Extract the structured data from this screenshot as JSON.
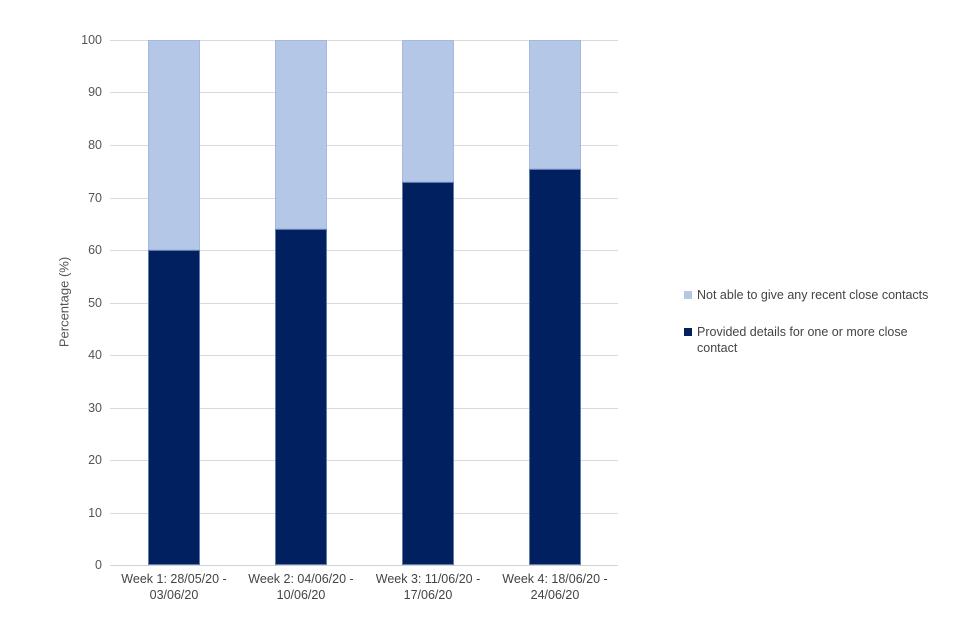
{
  "page": {
    "background": "#ffffff"
  },
  "chart_data": {
    "type": "bar",
    "stacked": true,
    "title": "",
    "xlabel": "",
    "ylabel": "Percentage (%)",
    "ylim": [
      0,
      100
    ],
    "yticks": [
      0,
      10,
      20,
      30,
      40,
      50,
      60,
      70,
      80,
      90,
      100
    ],
    "grid": true,
    "legend_position": "right",
    "categories": [
      "Week 1: 28/05/20 - 03/06/20",
      "Week 2: 04/06/20 - 10/06/20",
      "Week 3: 11/06/20 - 17/06/20",
      "Week 4: 18/06/20 - 24/06/20"
    ],
    "series": [
      {
        "name": "Provided details for one or more close contact",
        "color": "#002060",
        "values": [
          60,
          64,
          73,
          75.5
        ]
      },
      {
        "name": "Not able to give any recent close contacts",
        "color": "#b4c7e7",
        "values": [
          40,
          36,
          27,
          24.5
        ]
      }
    ],
    "legend_order": [
      1,
      0
    ]
  }
}
